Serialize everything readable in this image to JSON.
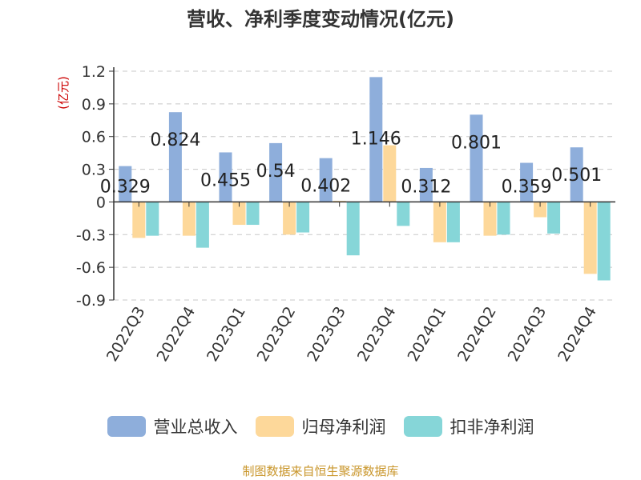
{
  "chart_data": {
    "type": "bar",
    "title": "营收、净利季度变动情况(亿元)",
    "unit_label": "(亿元)",
    "categories": [
      "2022Q3",
      "2022Q4",
      "2023Q1",
      "2023Q2",
      "2023Q3",
      "2023Q4",
      "2024Q1",
      "2024Q2",
      "2024Q3",
      "2024Q4"
    ],
    "series": [
      {
        "name": "营业总收入",
        "color": "#8eaedb",
        "values": [
          0.329,
          0.824,
          0.455,
          0.54,
          0.402,
          1.146,
          0.312,
          0.801,
          0.359,
          0.501
        ],
        "labels": [
          "0.329",
          "0.824",
          "0.455",
          "0.54",
          "0.402",
          "1.146",
          "0.312",
          "0.801",
          "0.359",
          "0.501"
        ]
      },
      {
        "name": "归母净利润",
        "color": "#fdd89a",
        "values": [
          -0.33,
          -0.31,
          -0.21,
          -0.3,
          0.01,
          0.52,
          -0.37,
          -0.31,
          -0.14,
          -0.66
        ]
      },
      {
        "name": "扣非净利润",
        "color": "#86d6d8",
        "values": [
          -0.31,
          -0.42,
          -0.21,
          -0.28,
          -0.49,
          -0.22,
          -0.37,
          -0.3,
          -0.29,
          -0.72
        ]
      }
    ],
    "yticks": [
      "1.2",
      "0.9",
      "0.6",
      "0.3",
      "0",
      "-0.3",
      "-0.6",
      "-0.9"
    ],
    "ylim": [
      -0.9,
      1.2
    ],
    "grid": true,
    "legend_position": "bottom"
  },
  "footer": {
    "source": "制图数据来自恒生聚源数据库"
  },
  "colors": {
    "grid": "#c8c8c8",
    "axis": "#333333",
    "unit": "#cc0000",
    "source": "#c9962b"
  }
}
